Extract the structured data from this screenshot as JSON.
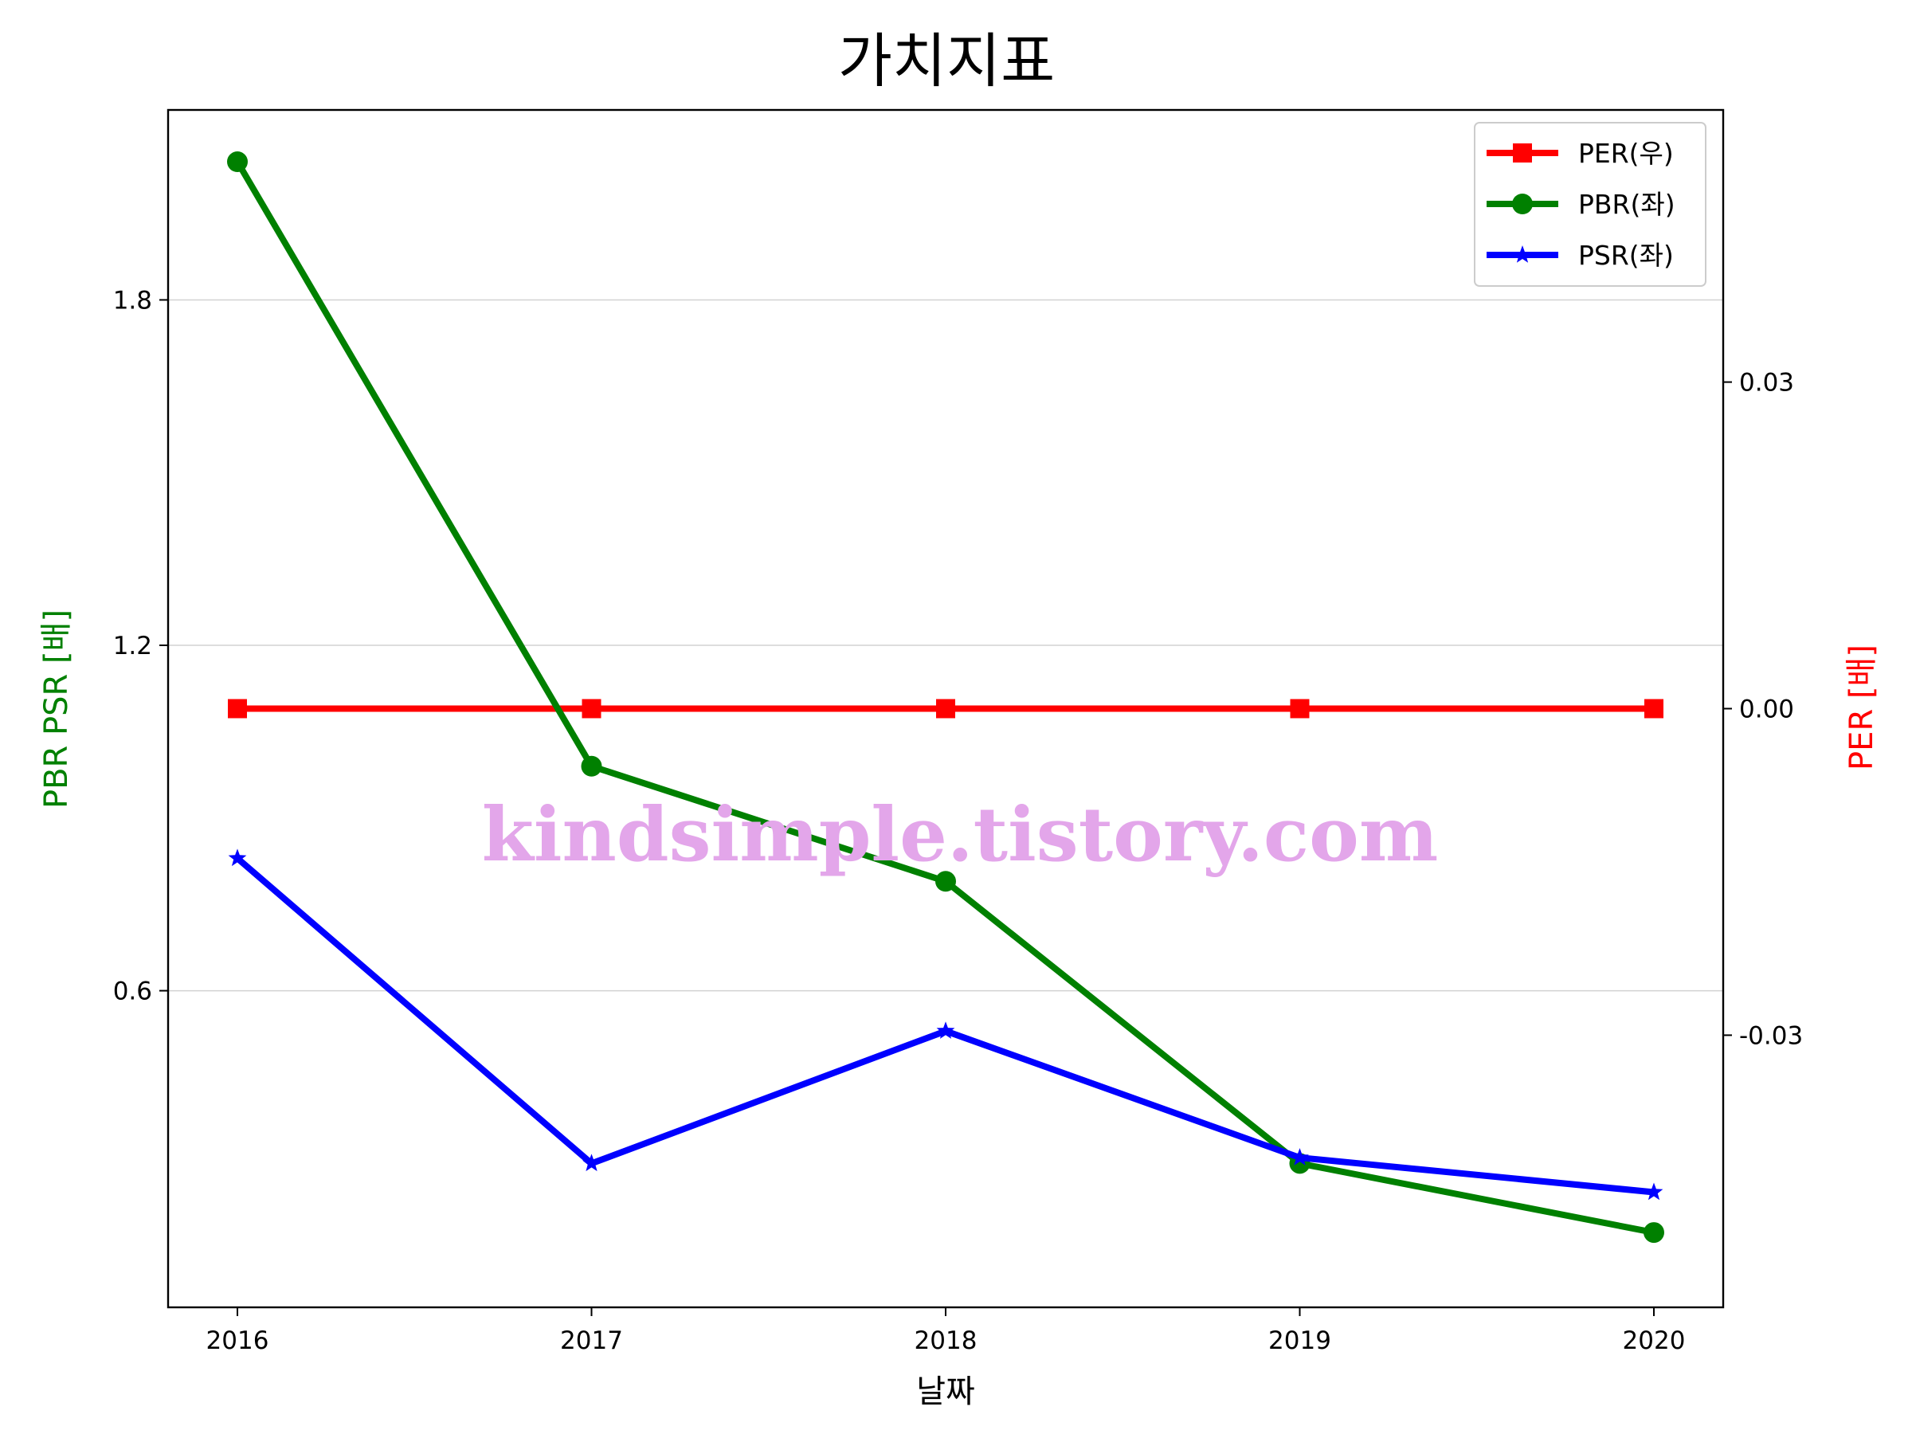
{
  "chart_data": {
    "type": "line",
    "title": "가치지표",
    "xlabel": "날짜",
    "ylabel_left": "PBR PSR [배]",
    "ylabel_right": "PER [배]",
    "categories": [
      "2016",
      "2017",
      "2018",
      "2019",
      "2020"
    ],
    "left_axis": {
      "ylim": [
        0.05,
        2.13
      ],
      "ticks": [
        "0.6",
        "1.2",
        "1.8"
      ],
      "tick_values": [
        0.6,
        1.2,
        1.8
      ]
    },
    "right_axis": {
      "ylim": [
        -0.055,
        0.055
      ],
      "ticks": [
        "-0.03",
        "0.00",
        "0.03"
      ],
      "tick_values": [
        -0.03,
        0.0,
        0.03
      ]
    },
    "grid": "horizontal-left-axis",
    "legend_position": "top-right",
    "series": [
      {
        "name": "PER(우)",
        "axis": "right",
        "color": "#ff0000",
        "marker": "square",
        "values": [
          0.0,
          0.0,
          0.0,
          0.0,
          0.0
        ]
      },
      {
        "name": "PBR(좌)",
        "axis": "left",
        "color": "#008000",
        "marker": "circle",
        "values": [
          2.04,
          0.99,
          0.79,
          0.3,
          0.18
        ]
      },
      {
        "name": "PSR(좌)",
        "axis": "left",
        "color": "#0000ff",
        "marker": "star",
        "values": [
          0.83,
          0.3,
          0.53,
          0.31,
          0.25
        ]
      }
    ],
    "watermark": "kindsimple.tistory.com"
  }
}
